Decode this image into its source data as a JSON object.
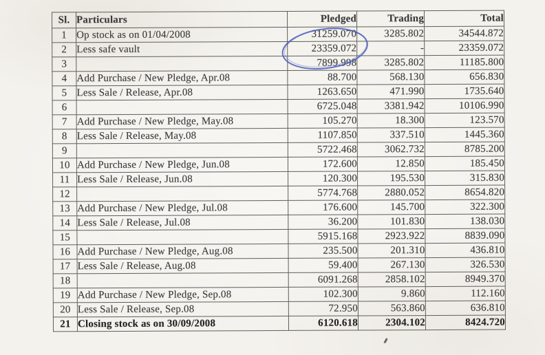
{
  "document": {
    "type": "scanned-stock-ledger",
    "period": "01/04/2008 - 30/09/2008"
  },
  "table": {
    "headers": {
      "sl": "Sl.",
      "particulars": "Particulars",
      "pledged": "Pledged",
      "trading": "Trading",
      "total": "Total"
    },
    "rows": [
      {
        "sl": "1",
        "particulars": "Op stock as on 01/04/2008",
        "pledged": "31259.070",
        "trading": "3285.802",
        "total": "34544.872"
      },
      {
        "sl": "2",
        "particulars": "Less safe vault",
        "pledged": "23359.072",
        "trading": "-",
        "total": "23359.072"
      },
      {
        "sl": "3",
        "particulars": "",
        "pledged": "7899.998",
        "trading": "3285.802",
        "total": "11185.800"
      },
      {
        "sl": "4",
        "particulars": "Add Purchase / New Pledge, Apr.08",
        "pledged": "88.700",
        "trading": "568.130",
        "total": "656.830"
      },
      {
        "sl": "5",
        "particulars": "Less Sale / Release, Apr.08",
        "pledged": "1263.650",
        "trading": "471.990",
        "total": "1735.640"
      },
      {
        "sl": "6",
        "particulars": "",
        "pledged": "6725.048",
        "trading": "3381.942",
        "total": "10106.990"
      },
      {
        "sl": "7",
        "particulars": "Add Purchase / New Pledge, May.08",
        "pledged": "105.270",
        "trading": "18.300",
        "total": "123.570"
      },
      {
        "sl": "8",
        "particulars": "Less Sale / Release, May.08",
        "pledged": "1107.850",
        "trading": "337.510",
        "total": "1445.360"
      },
      {
        "sl": "9",
        "particulars": "",
        "pledged": "5722.468",
        "trading": "3062.732",
        "total": "8785.200"
      },
      {
        "sl": "10",
        "particulars": "Add Purchase / New Pledge, Jun.08",
        "pledged": "172.600",
        "trading": "12.850",
        "total": "185.450"
      },
      {
        "sl": "11",
        "particulars": "Less Sale / Release, Jun.08",
        "pledged": "120.300",
        "trading": "195.530",
        "total": "315.830"
      },
      {
        "sl": "12",
        "particulars": "",
        "pledged": "5774.768",
        "trading": "2880.052",
        "total": "8654.820"
      },
      {
        "sl": "13",
        "particulars": "Add Purchase / New Pledge, Jul.08",
        "pledged": "176.600",
        "trading": "145.700",
        "total": "322.300"
      },
      {
        "sl": "14",
        "particulars": "Less Sale / Release, Jul.08",
        "pledged": "36.200",
        "trading": "101.830",
        "total": "138.030"
      },
      {
        "sl": "15",
        "particulars": "",
        "pledged": "5915.168",
        "trading": "2923.922",
        "total": "8839.090"
      },
      {
        "sl": "16",
        "particulars": "Add Purchase / New Pledge, Aug.08",
        "pledged": "235.500",
        "trading": "201.310",
        "total": "436.810"
      },
      {
        "sl": "17",
        "particulars": "Less Sale / Release, Aug.08",
        "pledged": "59.400",
        "trading": "267.130",
        "total": "326.530"
      },
      {
        "sl": "18",
        "particulars": "",
        "pledged": "6091.268",
        "trading": "2858.102",
        "total": "8949.370"
      },
      {
        "sl": "19",
        "particulars": "Add Purchase / New Pledge, Sep.08",
        "pledged": "102.300",
        "trading": "9.860",
        "total": "112.160"
      },
      {
        "sl": "20",
        "particulars": "Less Sale / Release, Sep.08",
        "pledged": "72.950",
        "trading": "563.860",
        "total": "636.810"
      },
      {
        "sl": "21",
        "particulars": "Closing stock as on 30/09/2008",
        "pledged": "6120.618",
        "trading": "2304.102",
        "total": "8424.720",
        "bold": true
      }
    ]
  },
  "annotation": {
    "type": "hand-drawn-pen-circle",
    "circled_value": "23359.072",
    "pen_color": "#4a5cba"
  },
  "colors": {
    "paper": "#f4f2ed",
    "ink": "#3b3b3b",
    "ink_bold": "#242424",
    "border": "#605e5a",
    "pen_blue": "#4a5cba"
  }
}
